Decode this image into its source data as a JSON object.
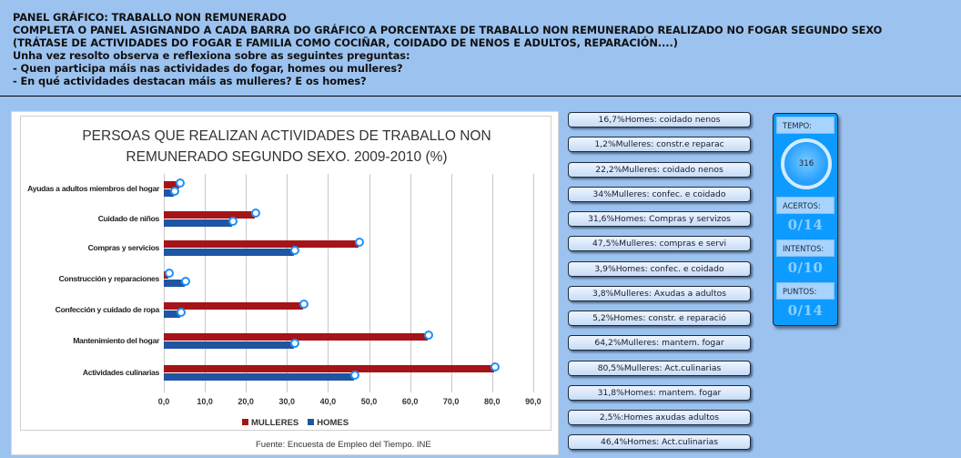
{
  "header": {
    "title": "PANEL GRÁFICO: TRABALLO NON REMUNERADO",
    "instruction_line1": "COMPLETA O PANEL ASIGNANDO A CADA BARRA DO GRÁFICO A PORCENTAXE DE TRABALLO NON REMUNERADO REALIZADO NO FOGAR SEGUNDO SEXO",
    "instruction_line2": "(TRÁTASE DE ACTIVIDADES DO FOGAR E FAMILIA COMO COCIÑAR, COIDADO DE NENOS E ADULTOS, REPARACIÓN....)",
    "prompt": "Unha vez resolto observa e reflexiona sobre as seguintes preguntas:",
    "question1": "- Quen participa máis nas actividades do fogar, homes ou mulleres?",
    "question2": "- En qué actividades destacan máis as mulleres? E os homes?"
  },
  "chart_data": {
    "type": "bar",
    "orientation": "horizontal",
    "title": "PERSOAS QUE REALIZAN ACTIVIDADES DE TRABALLO NON REMUNERADO SEGUNDO SEXO. 2009-2010 (%)",
    "title_line1": "PERSOAS QUE REALIZAN ACTIVIDADES DE TRABALLO NON",
    "title_line2": "REMUNERADO SEGUNDO SEXO. 2009-2010 (%)",
    "categories": [
      "Ayudas a adultos miembros del hogar",
      "Cuidado de niños",
      "Compras y servicios",
      "Construcción y reparaciones",
      "Confección y cuidado de ropa",
      "Mantenimiento del hogar",
      "Actividades culinarias"
    ],
    "series": [
      {
        "name": "MULLERES",
        "color": "#a51418",
        "values": [
          3.8,
          22.2,
          47.5,
          1.2,
          34.0,
          64.2,
          80.5
        ]
      },
      {
        "name": "HOMES",
        "color": "#1f55a3",
        "values": [
          2.5,
          16.7,
          31.6,
          5.2,
          3.9,
          31.8,
          46.4
        ]
      }
    ],
    "xticks": [
      "0,0",
      "10,0",
      "20,0",
      "30,0",
      "40,0",
      "50,0",
      "60,0",
      "70,0",
      "80,0",
      "90,0"
    ],
    "xlim": [
      0,
      90
    ],
    "grid": true,
    "legend_position": "bottom",
    "source": "Fuente: Encuesta de Empleo del Tiempo. INE",
    "drop_target_color": "#1e90ff"
  },
  "labels": [
    "16,7%Homes: coidado nenos",
    "1,2%Mulleres: constr.e reparac",
    "22,2%Mulleres: coidado nenos",
    "34%Mulleres: confec. e coidado",
    "31,6%Homes: Compras y servizos",
    "47,5%Mulleres: compras e servi",
    "3,9%Homes: confec. e coidado",
    "3,8%Mulleres: Axudas a adultos",
    "5,2%Homes: constr. e reparació",
    "64,2%Mulleres: mantem. fogar",
    "80,5%Mulleres: Act.culinarias",
    "31,8%Homes: mantem. fogar",
    "2,5%:Homes axudas adultos",
    "46,4%Homes: Act.culinarias"
  ],
  "score": {
    "time_label": "TEMPO:",
    "time_value": "316",
    "hits_label": "ACERTOS:",
    "hits_value": "0/14",
    "attempts_label": "INTENTOS:",
    "attempts_value": "0/10",
    "points_label": "PUNTOS:",
    "points_value": "0/14"
  }
}
